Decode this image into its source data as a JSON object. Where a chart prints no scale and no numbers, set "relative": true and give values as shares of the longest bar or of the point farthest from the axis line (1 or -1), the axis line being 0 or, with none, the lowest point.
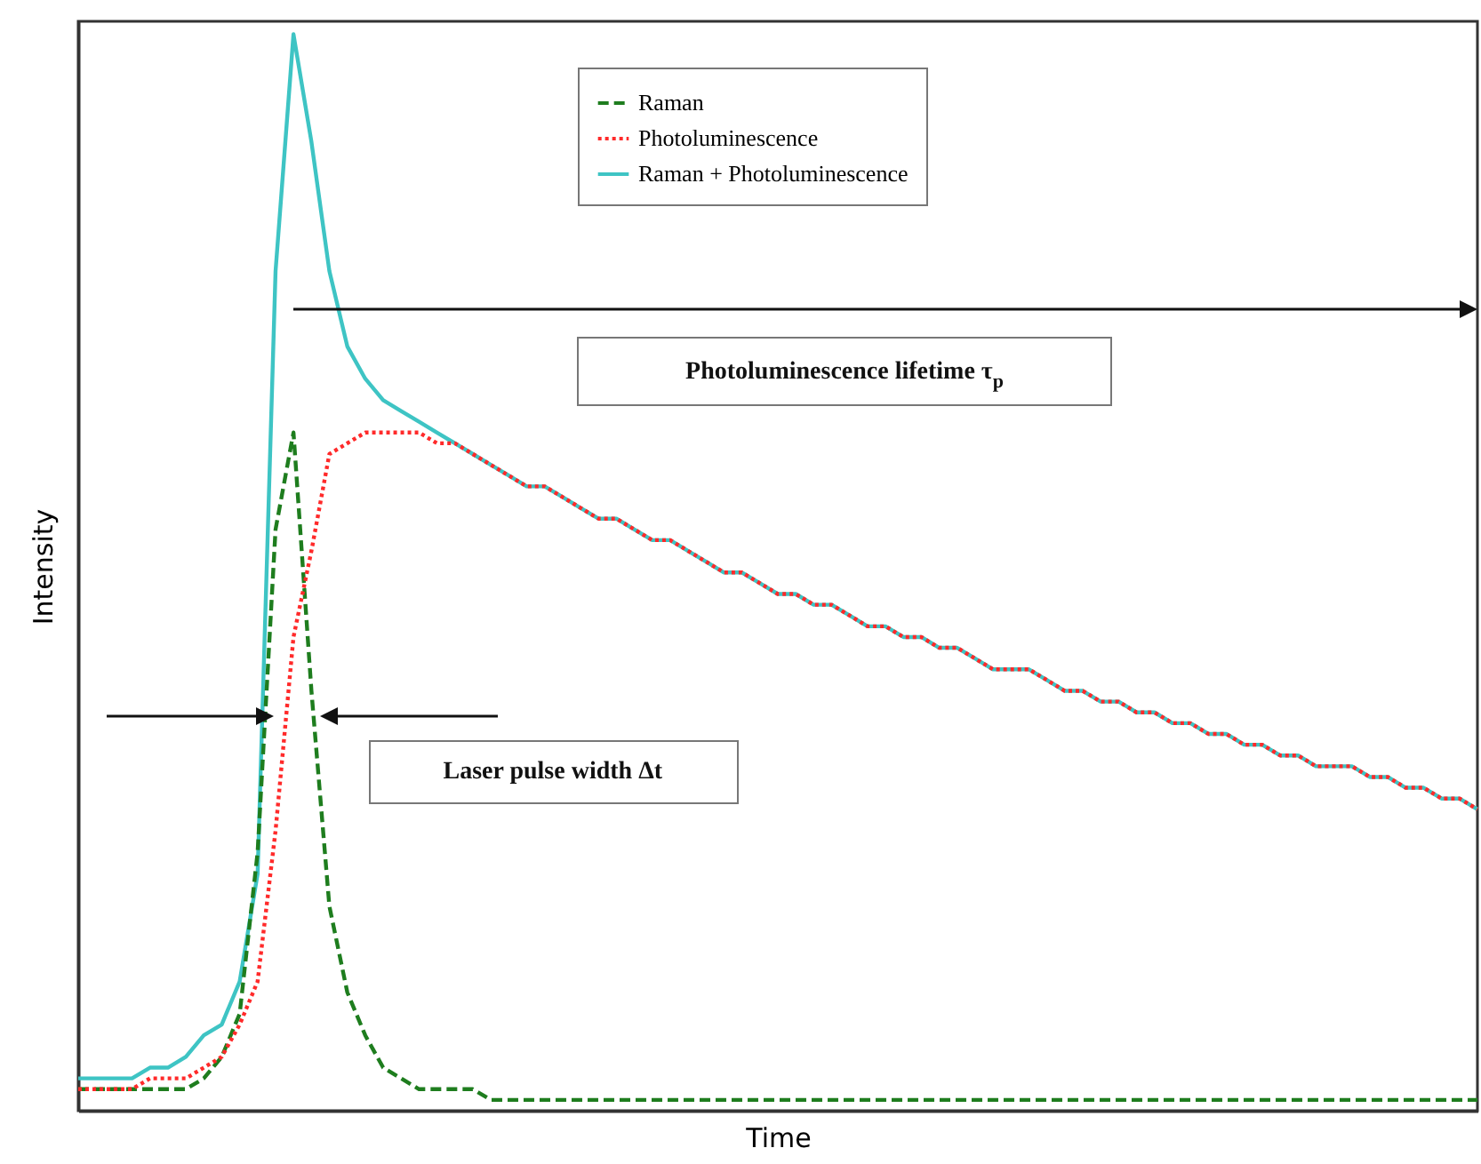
{
  "chart_data": {
    "type": "line",
    "xlabel": "Time",
    "ylabel": "Intensity",
    "relative": true,
    "tick_labels": false,
    "grid": false,
    "legend": "top",
    "marker": "none",
    "categories": [
      null,
      null,
      null,
      null,
      null,
      null,
      null,
      null,
      null,
      null,
      null,
      null,
      null,
      null,
      null,
      null,
      null,
      null,
      null,
      null,
      null,
      null,
      null,
      null,
      null,
      null,
      null,
      null,
      null,
      null,
      null,
      null,
      null,
      null,
      null,
      null,
      null,
      null,
      null,
      null,
      null,
      null,
      null,
      null,
      null,
      null,
      null,
      null,
      null,
      null,
      null,
      null,
      null,
      null,
      null,
      null,
      null,
      null,
      null,
      null,
      null,
      null,
      null,
      null,
      null,
      null,
      null,
      null,
      null,
      null,
      null,
      null,
      null,
      null,
      null,
      null,
      null,
      null,
      null
    ],
    "series": [
      {
        "name": "Raman",
        "color": "#1e7d1e",
        "line_style": "dashed",
        "values": [
          0.02,
          0.02,
          0.02,
          0.02,
          0.02,
          0.02,
          0.02,
          0.03,
          0.05,
          0.09,
          0.24,
          0.54,
          0.63,
          0.39,
          0.19,
          0.11,
          0.07,
          0.04,
          0.03,
          0.02,
          0.02,
          0.02,
          0.02,
          0.01,
          0.01,
          0.01,
          0.01,
          0.01,
          0.01,
          0.01,
          0.01,
          0.01,
          0.01,
          0.01,
          0.01,
          0.01,
          0.01,
          0.01,
          0.01,
          0.01,
          0.01,
          0.01,
          0.01,
          0.01,
          0.01,
          0.01,
          0.01,
          0.01,
          0.01,
          0.01,
          0.01,
          0.01,
          0.01,
          0.01,
          0.01,
          0.01,
          0.01,
          0.01,
          0.01,
          0.01,
          0.01,
          0.01,
          0.01,
          0.01,
          0.01,
          0.01,
          0.01,
          0.01,
          0.01,
          0.01,
          0.01,
          0.01,
          0.01,
          0.01,
          0.01,
          0.01,
          0.01,
          0.01,
          0.01
        ]
      },
      {
        "name": "Photoluminescence",
        "color": "#ff2a2a",
        "line_style": "dotted",
        "values": [
          0.02,
          0.02,
          0.02,
          0.02,
          0.03,
          0.03,
          0.03,
          0.04,
          0.05,
          0.08,
          0.12,
          0.26,
          0.44,
          0.52,
          0.61,
          0.62,
          0.63,
          0.63,
          0.63,
          0.63,
          0.62,
          0.62,
          0.61,
          0.6,
          0.59,
          0.58,
          0.58,
          0.57,
          0.56,
          0.55,
          0.55,
          0.54,
          0.53,
          0.53,
          0.52,
          0.51,
          0.5,
          0.5,
          0.49,
          0.48,
          0.48,
          0.47,
          0.47,
          0.46,
          0.45,
          0.45,
          0.44,
          0.44,
          0.43,
          0.43,
          0.42,
          0.41,
          0.41,
          0.41,
          0.4,
          0.39,
          0.39,
          0.38,
          0.38,
          0.37,
          0.37,
          0.36,
          0.36,
          0.35,
          0.35,
          0.34,
          0.34,
          0.33,
          0.33,
          0.32,
          0.32,
          0.32,
          0.31,
          0.31,
          0.3,
          0.3,
          0.29,
          0.29,
          0.28
        ]
      },
      {
        "name": "Raman + Photoluminescence",
        "color": "#3ec4c4",
        "line_style": "solid",
        "values": [
          0.03,
          0.03,
          0.03,
          0.03,
          0.04,
          0.04,
          0.05,
          0.07,
          0.08,
          0.12,
          0.22,
          0.78,
          1.0,
          0.9,
          0.78,
          0.71,
          0.68,
          0.66,
          0.65,
          0.64,
          0.63,
          0.62,
          0.61,
          0.6,
          0.59,
          0.58,
          0.58,
          0.57,
          0.56,
          0.55,
          0.55,
          0.54,
          0.53,
          0.53,
          0.52,
          0.51,
          0.5,
          0.5,
          0.49,
          0.48,
          0.48,
          0.47,
          0.47,
          0.46,
          0.45,
          0.45,
          0.44,
          0.44,
          0.43,
          0.43,
          0.42,
          0.41,
          0.41,
          0.41,
          0.4,
          0.39,
          0.39,
          0.38,
          0.38,
          0.37,
          0.37,
          0.36,
          0.36,
          0.35,
          0.35,
          0.34,
          0.34,
          0.33,
          0.33,
          0.32,
          0.32,
          0.32,
          0.31,
          0.31,
          0.3,
          0.3,
          0.29,
          0.29,
          0.28
        ]
      }
    ],
    "annotations": [
      "Photoluminescence lifetime τ$_{p}$",
      "Laser pulse width Δt"
    ]
  }
}
